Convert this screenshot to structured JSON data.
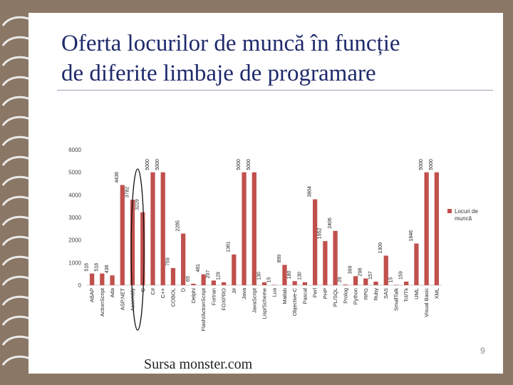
{
  "slide": {
    "title_line1": "Oferta locurilor de muncă în funcție",
    "title_line2": "de diferite limbaje de programare",
    "source": "Sursa monster.com",
    "page_number": "9"
  },
  "colors": {
    "bar": "#C0504D",
    "title": "#1f2a6b",
    "background": "#8B7765"
  },
  "chart_data": {
    "type": "bar",
    "title": "",
    "xlabel": "",
    "ylabel": "",
    "ylim": [
      0,
      6000
    ],
    "yticks": [
      0,
      1000,
      2000,
      3000,
      4000,
      5000,
      6000
    ],
    "legend": "right",
    "series": [
      {
        "name": "Locuri de muncă",
        "categories": [
          "ABAP",
          "ActionScript",
          "Ada",
          "ASP.NET",
          "Assembly",
          "C",
          "C#",
          "C++",
          "COBOL",
          "D",
          "Delphi",
          "Flash/ActionScript",
          "Fortran",
          "FOXPRO",
          "J#",
          "Java",
          "JavaScript",
          "Lisp/Scheme",
          "Lua",
          "Matlab",
          "Objective-C",
          "Pascal",
          "Perl",
          "PHP",
          "PL/SQL",
          "Prolog",
          "Python",
          "RPG",
          "Ruby",
          "SAS",
          "SmallTalk",
          "Tcl/Tk",
          "UML",
          "Visual Basic",
          "XML"
        ],
        "values": [
          516,
          518,
          436,
          4436,
          3782,
          3229,
          5000,
          5000,
          759,
          2285,
          65,
          481,
          207,
          129,
          1361,
          5000,
          5000,
          130,
          15,
          899,
          180,
          130,
          3804,
          1952,
          2406,
          29,
          399,
          298,
          157,
          1309,
          15,
          159,
          1846,
          5000,
          5000
        ],
        "labels": [
          "516",
          "518",
          "436",
          "4436",
          "3782",
          "3229",
          "5000",
          "5000",
          "759",
          "2285",
          "65",
          "481",
          "207",
          "129",
          "1361",
          "5000",
          "5000",
          "130",
          "15",
          "899",
          "180",
          "130",
          "3804",
          "1952",
          "2406",
          "29",
          "399",
          "298",
          "157",
          "1309",
          "15",
          "159",
          "1846",
          "5000",
          "5000"
        ]
      }
    ]
  }
}
